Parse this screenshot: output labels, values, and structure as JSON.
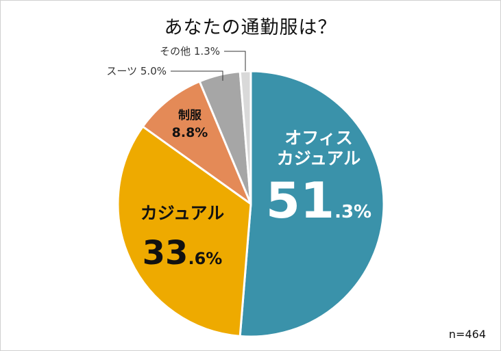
{
  "title": "あなたの通勤服は？",
  "sample_size": "n=464",
  "chart_data": {
    "type": "pie",
    "title": "あなたの通勤服は？",
    "unit": "%",
    "start_angle_deg": 0,
    "direction": "clockwise",
    "slices": [
      {
        "label_lines": [
          "オフィス",
          "カジュアル"
        ],
        "value": 51.3,
        "value_big": "51",
        "value_small": ".3%",
        "color": "#3a92aa",
        "label_style": "inside-big",
        "text_color": "#ffffff"
      },
      {
        "label_lines": [
          "カジュアル"
        ],
        "value": 33.6,
        "value_big": "33",
        "value_small": ".6%",
        "color": "#eeaa00",
        "label_style": "inside-big",
        "text_color": "#111111"
      },
      {
        "label_lines": [
          "制服"
        ],
        "value": 8.8,
        "value_text": "8.8%",
        "color": "#e48a57",
        "label_style": "inside-small",
        "text_color": "#111111"
      },
      {
        "label_lines": [
          "スーツ"
        ],
        "value": 5.0,
        "value_text": "5.0%",
        "color": "#a6a6a6",
        "label_style": "outside",
        "text_color": "#333333"
      },
      {
        "label_lines": [
          "その他"
        ],
        "value": 1.3,
        "value_text": "1.3%",
        "color": "#d9d9d9",
        "label_style": "outside",
        "text_color": "#333333"
      }
    ]
  }
}
